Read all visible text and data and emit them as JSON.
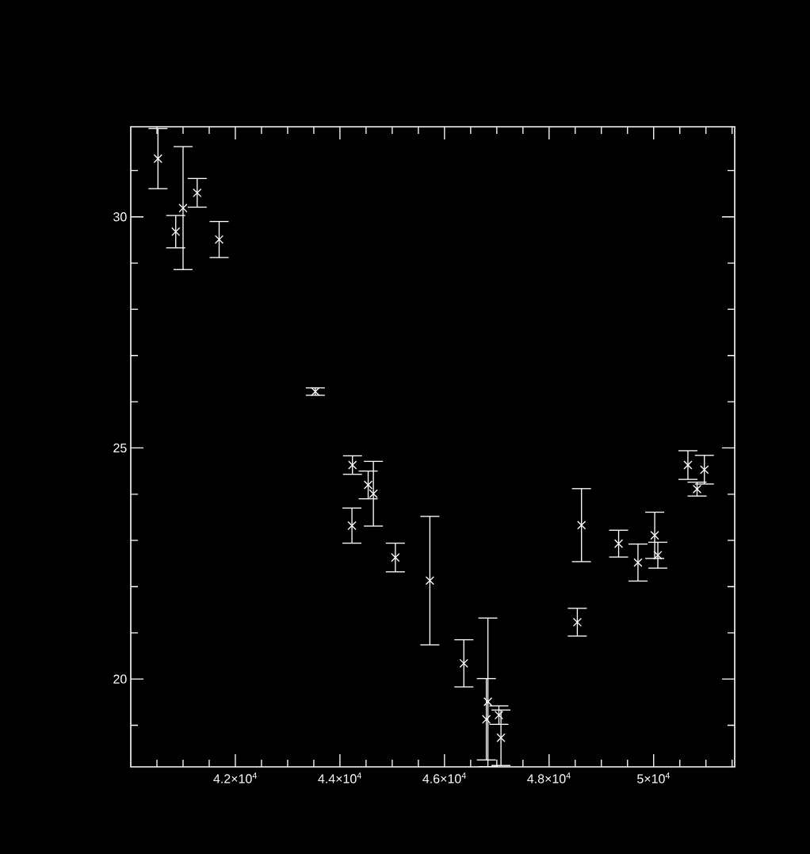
{
  "chart_data": {
    "type": "scatter",
    "marker": "cross",
    "grid": false,
    "xlim": [
      40000,
      51550
    ],
    "ylim": [
      18.1,
      31.95
    ],
    "xticks": [
      {
        "value": 40500,
        "label": null
      },
      {
        "value": 41000,
        "label": null
      },
      {
        "value": 41500,
        "label": null
      },
      {
        "value": 42000,
        "label": "4.2×10$^{4}$"
      },
      {
        "value": 42500,
        "label": null
      },
      {
        "value": 43000,
        "label": null
      },
      {
        "value": 43500,
        "label": null
      },
      {
        "value": 44000,
        "label": "4.4×10$^{4}$"
      },
      {
        "value": 44500,
        "label": null
      },
      {
        "value": 45000,
        "label": null
      },
      {
        "value": 45500,
        "label": null
      },
      {
        "value": 46000,
        "label": "4.6×10$^{4}$"
      },
      {
        "value": 46500,
        "label": null
      },
      {
        "value": 47000,
        "label": null
      },
      {
        "value": 47500,
        "label": null
      },
      {
        "value": 48000,
        "label": "4.8×10$^{4}$"
      },
      {
        "value": 48500,
        "label": null
      },
      {
        "value": 49000,
        "label": null
      },
      {
        "value": 49500,
        "label": null
      },
      {
        "value": 50000,
        "label": "5×10$^{4}$"
      },
      {
        "value": 50500,
        "label": null
      },
      {
        "value": 51000,
        "label": null
      },
      {
        "value": 51500,
        "label": null
      }
    ],
    "yticks": [
      {
        "value": 19,
        "label": null
      },
      20,
      {
        "value": 21,
        "label": null
      },
      {
        "value": 22,
        "label": null
      },
      {
        "value": 23,
        "label": null
      },
      {
        "value": 24,
        "label": null
      },
      25,
      {
        "value": 26,
        "label": null
      },
      {
        "value": 27,
        "label": null
      },
      {
        "value": 28,
        "label": null
      },
      {
        "value": 29,
        "label": null
      },
      30,
      {
        "value": 31,
        "label": null
      }
    ],
    "x": [
      40520,
      40860,
      41000,
      41270,
      41690,
      43530,
      44240,
      44230,
      44540,
      44640,
      45060,
      45720,
      46370,
      46830,
      46800,
      47040,
      47080,
      48540,
      48620,
      49330,
      49700,
      50020,
      50080,
      50655,
      50830,
      50970
    ],
    "series": [
      {
        "color": "#ffffff",
        "values": [
          31.26,
          29.68,
          30.19,
          30.52,
          29.51,
          26.22,
          24.63,
          23.32,
          24.2,
          24.01,
          22.63,
          22.13,
          20.34,
          19.51,
          19.13,
          19.22,
          18.73,
          21.23,
          23.33,
          22.93,
          22.52,
          23.11,
          22.68,
          24.63,
          24.11,
          24.53
        ],
        "errors": [
          0.65,
          0.35,
          1.33,
          0.31,
          0.39,
          0.08,
          0.2,
          0.38,
          0.3,
          0.7,
          0.31,
          1.39,
          0.51,
          [
            18.1,
            21.32
          ],
          0.88,
          0.2,
          0.6,
          0.3,
          0.79,
          0.29,
          0.4,
          0.5,
          0.28,
          0.31,
          0.15,
          0.31
        ]
      }
    ]
  }
}
